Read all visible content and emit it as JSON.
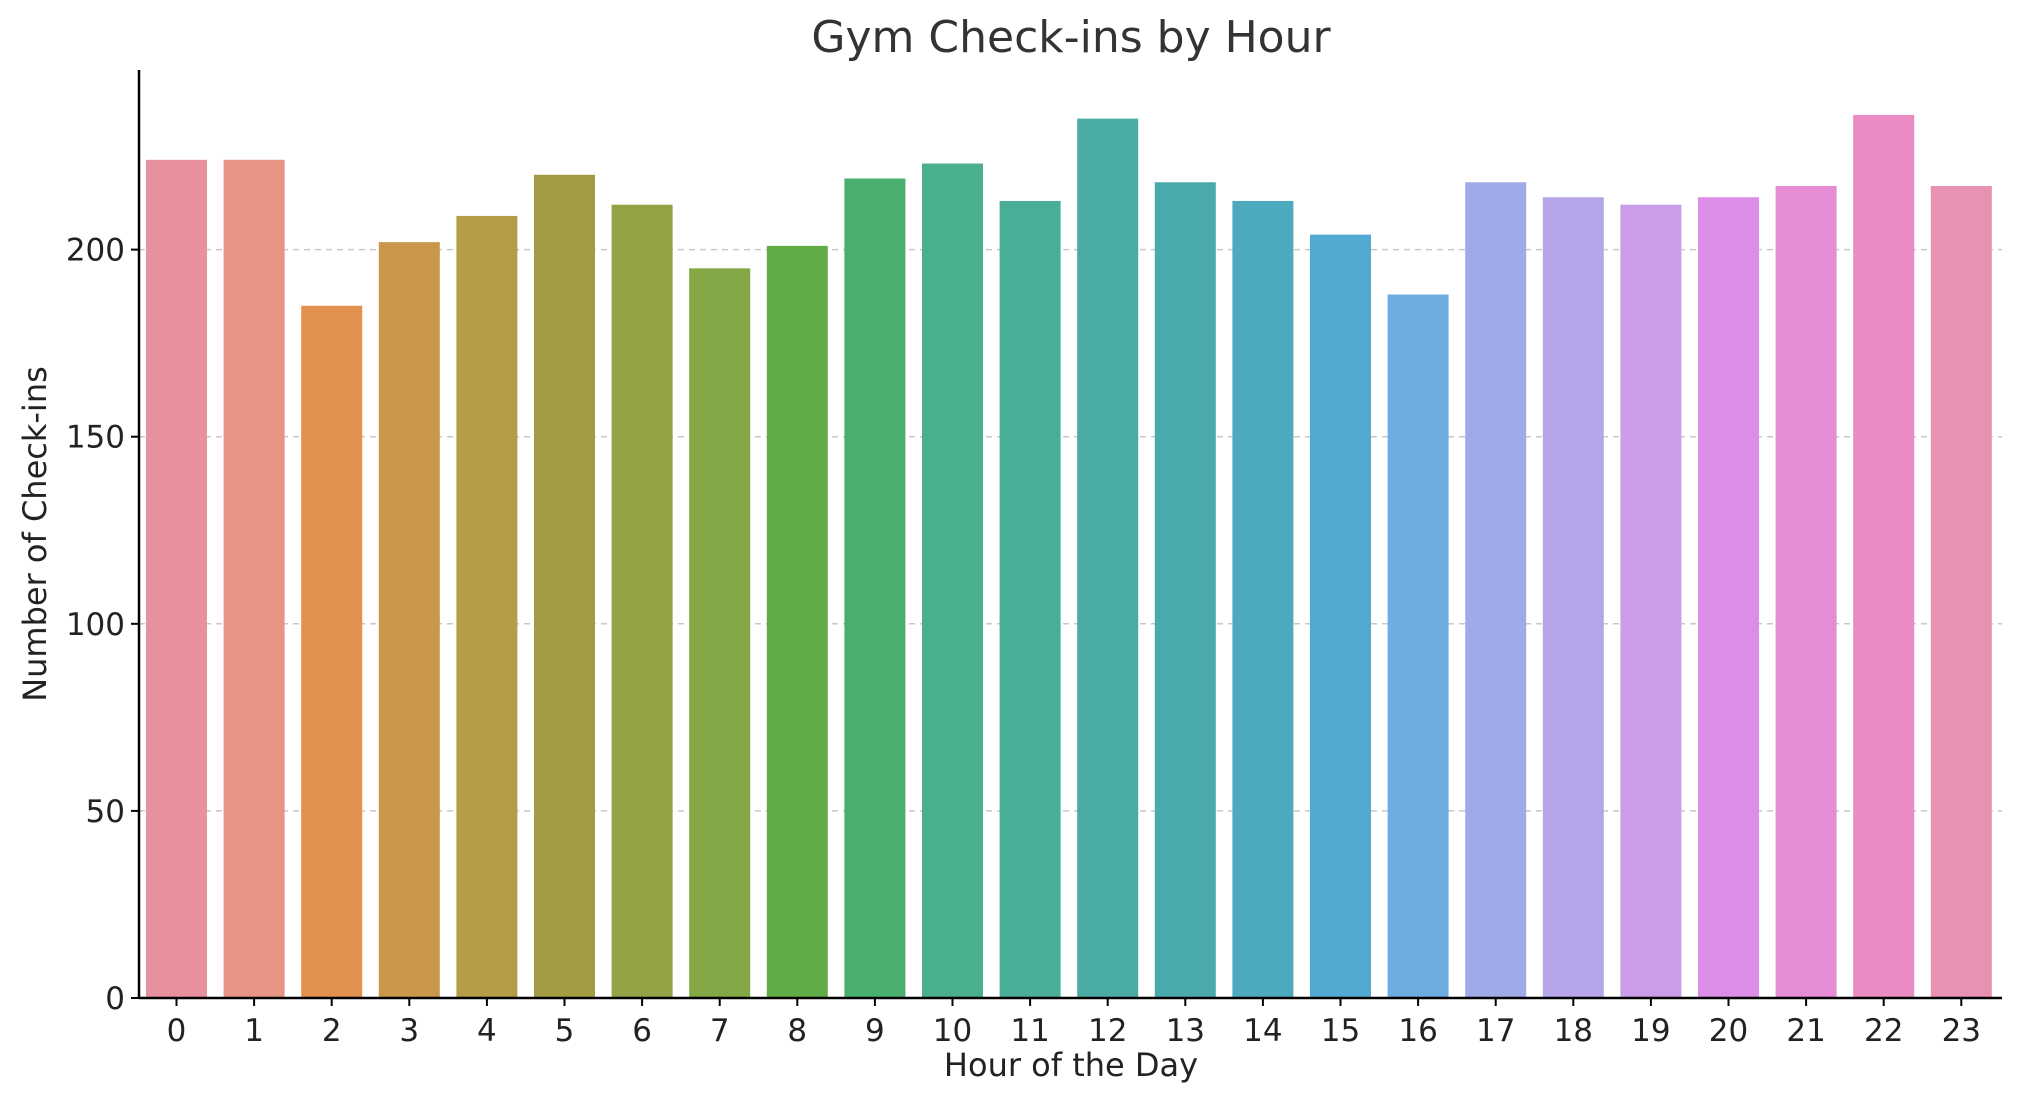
{
  "chart_data": {
    "type": "bar",
    "title": "Gym Check-ins by Hour",
    "xlabel": "Hour of the Day",
    "ylabel": "Number of Check-ins",
    "categories": [
      "0",
      "1",
      "2",
      "3",
      "4",
      "5",
      "6",
      "7",
      "8",
      "9",
      "10",
      "11",
      "12",
      "13",
      "14",
      "15",
      "16",
      "17",
      "18",
      "19",
      "20",
      "21",
      "22",
      "23"
    ],
    "values": [
      224,
      224,
      185,
      202,
      209,
      220,
      212,
      195,
      201,
      219,
      223,
      213,
      235,
      218,
      213,
      204,
      188,
      218,
      214,
      212,
      214,
      217,
      236,
      217
    ],
    "colors": [
      "#e8919e",
      "#e69585",
      "#e0904f",
      "#c8974a",
      "#b59d47",
      "#a39c44",
      "#93a245",
      "#83a845",
      "#60ad48",
      "#49ae6f",
      "#4aaf8b",
      "#49ad97",
      "#4aaaa4",
      "#4aa9ad",
      "#4daabe",
      "#52aad3",
      "#6dade2",
      "#9eabe8",
      "#b6a6e9",
      "#cb9de8",
      "#dc8de6",
      "#e68cd4",
      "#e88cc3",
      "#e891b2"
    ],
    "yticks": [
      0,
      50,
      100,
      150,
      200
    ],
    "ylim": [
      0,
      248
    ],
    "grid": "y-dashed",
    "legend": "none"
  }
}
